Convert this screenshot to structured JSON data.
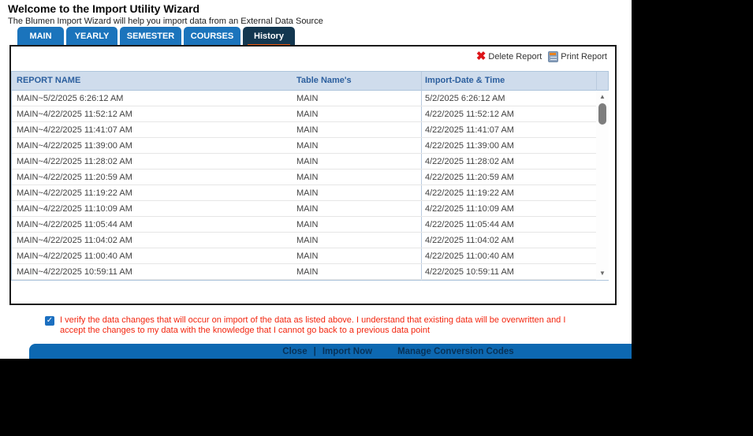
{
  "page": {
    "title": "Welcome to the Import Utility Wizard",
    "subtitle": "The Blumen Import Wizard will help you import data from an External Data Source"
  },
  "tabs": [
    {
      "label": "MAIN",
      "active": false
    },
    {
      "label": "YEARLY",
      "active": false
    },
    {
      "label": "SEMESTER",
      "active": false
    },
    {
      "label": "COURSES",
      "active": false
    },
    {
      "label": "History",
      "active": true
    }
  ],
  "toolbar": {
    "delete_label": "Delete Report",
    "print_label": "Print Report",
    "delete_icon": "delete-x-icon",
    "print_icon": "print-report-icon"
  },
  "table": {
    "columns": [
      "REPORT NAME",
      "Table Name's",
      "Import-Date & Time"
    ],
    "rows": [
      [
        "MAIN~5/2/2025 6:26:12 AM",
        "MAIN",
        "5/2/2025 6:26:12 AM"
      ],
      [
        "MAIN~4/22/2025 11:52:12 AM",
        "MAIN",
        "4/22/2025 11:52:12 AM"
      ],
      [
        "MAIN~4/22/2025 11:41:07 AM",
        "MAIN",
        "4/22/2025 11:41:07 AM"
      ],
      [
        "MAIN~4/22/2025 11:39:00 AM",
        "MAIN",
        "4/22/2025 11:39:00 AM"
      ],
      [
        "MAIN~4/22/2025 11:28:02 AM",
        "MAIN",
        "4/22/2025 11:28:02 AM"
      ],
      [
        "MAIN~4/22/2025 11:20:59 AM",
        "MAIN",
        "4/22/2025 11:20:59 AM"
      ],
      [
        "MAIN~4/22/2025 11:19:22 AM",
        "MAIN",
        "4/22/2025 11:19:22 AM"
      ],
      [
        "MAIN~4/22/2025 11:10:09 AM",
        "MAIN",
        "4/22/2025 11:10:09 AM"
      ],
      [
        "MAIN~4/22/2025 11:05:44 AM",
        "MAIN",
        "4/22/2025 11:05:44 AM"
      ],
      [
        "MAIN~4/22/2025 11:04:02 AM",
        "MAIN",
        "4/22/2025 11:04:02 AM"
      ],
      [
        "MAIN~4/22/2025 11:00:40 AM",
        "MAIN",
        "4/22/2025 11:00:40 AM"
      ],
      [
        "MAIN~4/22/2025 10:59:11 AM",
        "MAIN",
        "4/22/2025 10:59:11 AM"
      ]
    ]
  },
  "confirmation": {
    "checked": true,
    "check_glyph": "✓",
    "text": "I verify the data changes that will occur on import of the data as listed above. I understand that existing data will be overwritten and I accept the changes to my data with the knowledge that I cannot go back to a previous data point"
  },
  "footer": {
    "close_label": "Close",
    "separator": "|",
    "import_now_label": "Import Now",
    "manage_label": "Manage Conversion Codes"
  },
  "icons": {
    "delete_glyph": "✖",
    "scroll_up_glyph": "▲",
    "scroll_down_glyph": "▼"
  },
  "colors": {
    "tab_blue": "#1b74bc",
    "active_tab_navy": "#133750",
    "active_tab_orange": "#e8570e",
    "table_header_bg": "#cfdcec",
    "table_header_text": "#2c5f9e",
    "confirmation_red": "#f3260f",
    "footer_bar_blue": "#0d68b1",
    "footer_text_navy": "#083258",
    "delete_x_red": "#dd1418",
    "letterbox_black": "#000000"
  }
}
